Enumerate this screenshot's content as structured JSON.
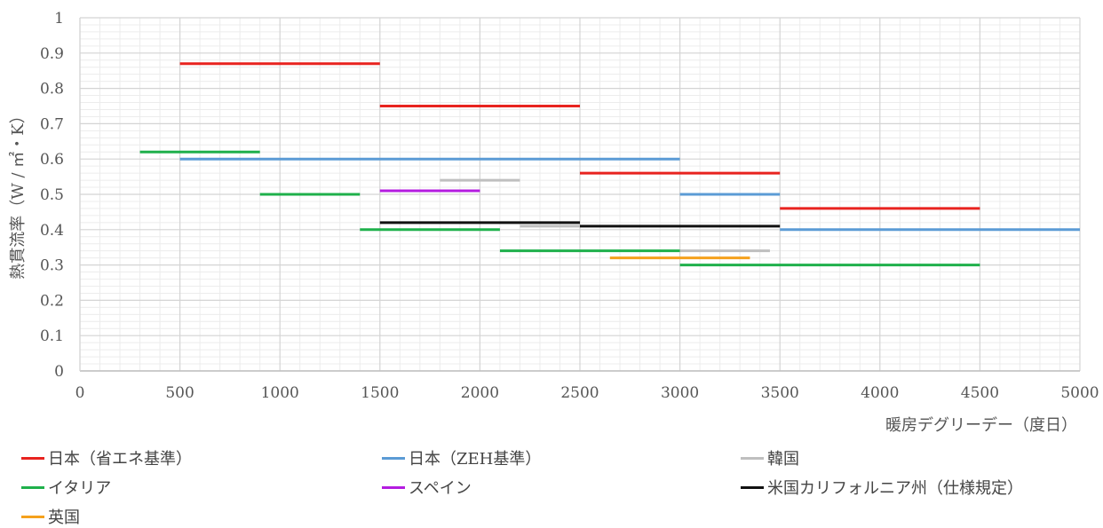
{
  "chart_data": {
    "type": "line",
    "xlabel": "暖房デグリーデー（度日）",
    "ylabel": "熱貫流率（W / ㎡・K）",
    "xlim": [
      0,
      5000
    ],
    "ylim": [
      0,
      1
    ],
    "x_ticks": [
      "0",
      "500",
      "1000",
      "1500",
      "2000",
      "2500",
      "3000",
      "3500",
      "4000",
      "4500",
      "5000"
    ],
    "y_ticks": [
      "0",
      "0.1",
      "0.2",
      "0.3",
      "0.4",
      "0.5",
      "0.6",
      "0.7",
      "0.8",
      "0.9",
      "1"
    ],
    "grid": true,
    "legend_position": "bottom",
    "series": [
      {
        "name": "日本（省エネ基準）",
        "color": "#e8231f",
        "segments": [
          {
            "x": [
              500,
              1500
            ],
            "y": 0.87
          },
          {
            "x": [
              1500,
              2500
            ],
            "y": 0.75
          },
          {
            "x": [
              2500,
              3500
            ],
            "y": 0.56
          },
          {
            "x": [
              3500,
              4500
            ],
            "y": 0.46
          }
        ]
      },
      {
        "name": "日本（ZEH基準）",
        "color": "#5b9bd5",
        "segments": [
          {
            "x": [
              500,
              3000
            ],
            "y": 0.6
          },
          {
            "x": [
              3000,
              3500
            ],
            "y": 0.5
          },
          {
            "x": [
              3500,
              5000
            ],
            "y": 0.4
          }
        ]
      },
      {
        "name": "韓国",
        "color": "#bfbfbf",
        "segments": [
          {
            "x": [
              1800,
              2200
            ],
            "y": 0.54
          },
          {
            "x": [
              2200,
              2500
            ],
            "y": 0.41
          },
          {
            "x": [
              3000,
              3450
            ],
            "y": 0.34
          }
        ]
      },
      {
        "name": "イタリア",
        "color": "#1fb04b",
        "segments": [
          {
            "x": [
              300,
              900
            ],
            "y": 0.62
          },
          {
            "x": [
              900,
              1400
            ],
            "y": 0.5
          },
          {
            "x": [
              1400,
              2100
            ],
            "y": 0.4
          },
          {
            "x": [
              2100,
              3000
            ],
            "y": 0.34
          },
          {
            "x": [
              3000,
              4500
            ],
            "y": 0.3
          }
        ]
      },
      {
        "name": "スペイン",
        "color": "#b41ce0",
        "segments": [
          {
            "x": [
              1500,
              2000
            ],
            "y": 0.51
          }
        ]
      },
      {
        "name": "米国カリフォルニア州（仕様規定）",
        "color": "#111111",
        "segments": [
          {
            "x": [
              1500,
              2500
            ],
            "y": 0.42
          },
          {
            "x": [
              2500,
              3500
            ],
            "y": 0.41
          }
        ]
      },
      {
        "name": "英国",
        "color": "#f5a11c",
        "segments": [
          {
            "x": [
              2650,
              3350
            ],
            "y": 0.32
          }
        ]
      }
    ]
  }
}
